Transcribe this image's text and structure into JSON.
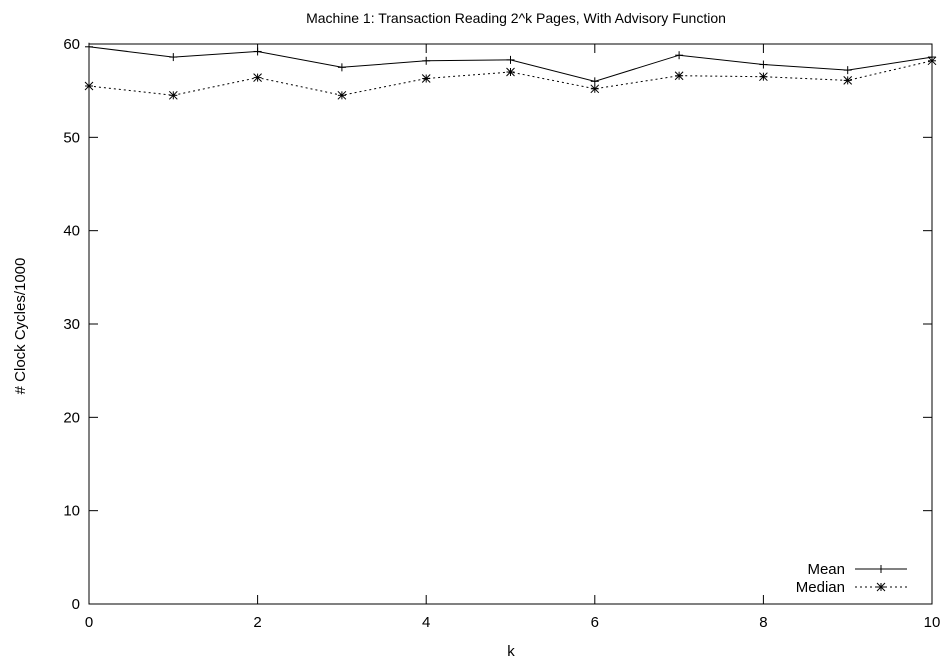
{
  "chart_data": {
    "type": "line",
    "title": "Machine 1: Transaction Reading 2^k Pages, With Advisory Function",
    "xlabel": "k",
    "ylabel": "# Clock Cycles/1000",
    "xlim": [
      0,
      10
    ],
    "ylim": [
      0,
      60
    ],
    "x_ticks": [
      0,
      2,
      4,
      6,
      8,
      10
    ],
    "y_ticks": [
      0,
      10,
      20,
      30,
      40,
      50,
      60
    ],
    "grid": false,
    "legend_position": "bottom-right",
    "x": [
      0,
      1,
      2,
      3,
      4,
      5,
      6,
      7,
      8,
      9,
      10
    ],
    "series": [
      {
        "name": "Mean",
        "style": "solid",
        "marker": "plus",
        "values": [
          59.7,
          58.6,
          59.2,
          57.5,
          58.2,
          58.3,
          56.0,
          58.8,
          57.8,
          57.2,
          58.6
        ]
      },
      {
        "name": "Median",
        "style": "dotted",
        "marker": "star",
        "values": [
          55.5,
          54.5,
          56.4,
          54.5,
          56.3,
          57.0,
          55.2,
          56.6,
          56.5,
          56.1,
          58.2
        ]
      }
    ]
  },
  "colors": {
    "line": "#000000",
    "background": "#ffffff"
  }
}
